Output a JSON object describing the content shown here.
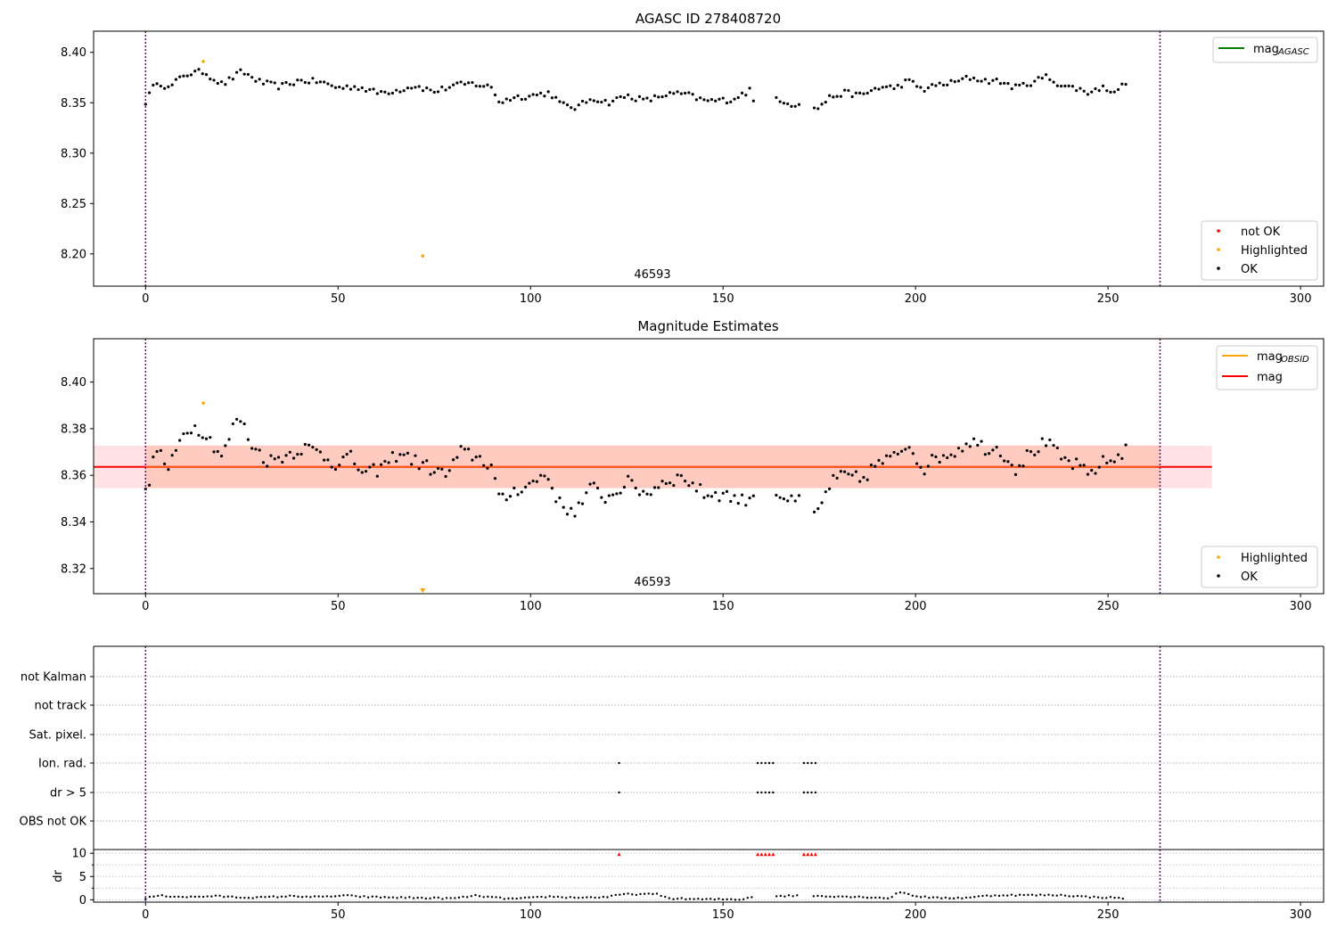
{
  "chart_data": [
    {
      "type": "scatter",
      "title": "AGASC ID 278408720",
      "annotation": "46593",
      "xlim": [
        -13.5,
        306
      ],
      "ylim": [
        8.168,
        8.421
      ],
      "x_ticks": [
        0,
        50,
        100,
        150,
        200,
        250,
        300
      ],
      "y_ticks": [
        8.2,
        8.25,
        8.3,
        8.35,
        8.4
      ],
      "y_tick_labels": [
        "8.20",
        "8.25",
        "8.30",
        "8.35",
        "8.40"
      ],
      "x_tick_labels": [
        "0",
        "50",
        "100",
        "150",
        "200",
        "250",
        "300"
      ],
      "vlines": [
        0,
        263.5
      ],
      "lines": [
        {
          "name": "mag_AGASC_label",
          "label_main": "mag",
          "label_sub": "AGASC",
          "color": "#008000"
        }
      ],
      "legend_top": {
        "position": "top-right",
        "entries": [
          {
            "label_main": "mag",
            "label_sub": "AGASC",
            "color": "#008000"
          }
        ]
      },
      "legend_bottom": {
        "position": "bottom-right",
        "entries": [
          {
            "label": "not OK",
            "color": "#ff0000"
          },
          {
            "label": "Highlighted",
            "color": "#ffa500"
          },
          {
            "label": "OK",
            "color": "#000000"
          }
        ]
      },
      "series": [
        {
          "name": "OK",
          "color": "#000000",
          "anchors": [
            [
              0,
              8.351
            ],
            [
              3,
              8.372
            ],
            [
              6,
              8.364
            ],
            [
              10,
              8.378
            ],
            [
              15,
              8.381
            ],
            [
              20,
              8.368
            ],
            [
              25,
              8.381
            ],
            [
              30,
              8.37
            ],
            [
              35,
              8.366
            ],
            [
              40,
              8.372
            ],
            [
              45,
              8.371
            ],
            [
              50,
              8.365
            ],
            [
              55,
              8.366
            ],
            [
              60,
              8.36
            ],
            [
              65,
              8.362
            ],
            [
              70,
              8.367
            ],
            [
              75,
              8.361
            ],
            [
              80,
              8.367
            ],
            [
              85,
              8.369
            ],
            [
              90,
              8.365
            ],
            [
              92,
              8.35
            ],
            [
              95,
              8.355
            ],
            [
              100,
              8.357
            ],
            [
              105,
              8.36
            ],
            [
              108,
              8.348
            ],
            [
              112,
              8.345
            ],
            [
              116,
              8.355
            ],
            [
              120,
              8.35
            ],
            [
              125,
              8.357
            ],
            [
              130,
              8.352
            ],
            [
              135,
              8.358
            ],
            [
              140,
              8.359
            ],
            [
              145,
              8.352
            ],
            [
              148,
              8.352
            ],
            [
              152,
              8.353
            ],
            [
              157,
              8.362
            ],
            [
              158,
              8.35
            ],
            [
              164,
              8.355
            ],
            [
              168,
              8.348
            ],
            [
              170,
              8.35
            ],
            [
              174,
              8.343
            ],
            [
              178,
              8.356
            ],
            [
              182,
              8.36
            ],
            [
              186,
              8.357
            ],
            [
              190,
              8.365
            ],
            [
              195,
              8.365
            ],
            [
              198,
              8.372
            ],
            [
              202,
              8.363
            ],
            [
              206,
              8.368
            ],
            [
              210,
              8.37
            ],
            [
              214,
              8.375
            ],
            [
              218,
              8.372
            ],
            [
              222,
              8.371
            ],
            [
              226,
              8.365
            ],
            [
              230,
              8.37
            ],
            [
              234,
              8.376
            ],
            [
              238,
              8.367
            ],
            [
              242,
              8.364
            ],
            [
              245,
              8.36
            ],
            [
              248,
              8.365
            ],
            [
              252,
              8.362
            ],
            [
              256,
              8.373
            ],
            [
              260,
              8.368
            ],
            [
              263,
              8.368
            ]
          ],
          "n": 251
        },
        {
          "name": "Highlighted",
          "color": "#ffa500",
          "points": [
            [
              15,
              8.391
            ],
            [
              72,
              8.198
            ]
          ]
        }
      ]
    },
    {
      "type": "scatter",
      "title": "Magnitude Estimates",
      "annotation": "46593",
      "xlim": [
        -13.5,
        306
      ],
      "ylim": [
        8.3092,
        8.4186
      ],
      "x_ticks": [
        0,
        50,
        100,
        150,
        200,
        250,
        300
      ],
      "y_ticks": [
        8.32,
        8.34,
        8.36,
        8.38,
        8.4
      ],
      "y_tick_labels": [
        "8.32",
        "8.34",
        "8.36",
        "8.38",
        "8.40"
      ],
      "x_tick_labels": [
        "0",
        "50",
        "100",
        "150",
        "200",
        "250",
        "300"
      ],
      "vlines": [
        0,
        263.5
      ],
      "mag": 8.3636,
      "band": [
        8.3545,
        8.3728
      ],
      "band_x": [
        -13.5,
        277
      ],
      "legend_top": {
        "position": "top-right",
        "entries": [
          {
            "label_main": "mag",
            "label_sub": "OBSID",
            "color": "#ffa500"
          },
          {
            "label_main": "mag",
            "label_sub": "",
            "color": "#ff0000"
          }
        ]
      },
      "legend_bottom": {
        "position": "bottom-right",
        "entries": [
          {
            "label": "Highlighted",
            "color": "#ffa500"
          },
          {
            "label": "OK",
            "color": "#000000"
          }
        ]
      },
      "series": [
        {
          "name": "OK",
          "color": "#000000",
          "anchors": [
            [
              0,
              8.352
            ],
            [
              3,
              8.372
            ],
            [
              6,
              8.362
            ],
            [
              10,
              8.379
            ],
            [
              12,
              8.381
            ],
            [
              15,
              8.379
            ],
            [
              20,
              8.368
            ],
            [
              24,
              8.386
            ],
            [
              28,
              8.372
            ],
            [
              32,
              8.366
            ],
            [
              37,
              8.369
            ],
            [
              41,
              8.372
            ],
            [
              45,
              8.37
            ],
            [
              49,
              8.365
            ],
            [
              53,
              8.368
            ],
            [
              57,
              8.36
            ],
            [
              61,
              8.363
            ],
            [
              66,
              8.37
            ],
            [
              70,
              8.366
            ],
            [
              74,
              8.363
            ],
            [
              78,
              8.36
            ],
            [
              82,
              8.37
            ],
            [
              86,
              8.368
            ],
            [
              90,
              8.364
            ],
            [
              92,
              8.348
            ],
            [
              96,
              8.354
            ],
            [
              100,
              8.356
            ],
            [
              104,
              8.361
            ],
            [
              108,
              8.346
            ],
            [
              112,
              8.345
            ],
            [
              116,
              8.355
            ],
            [
              120,
              8.35
            ],
            [
              125,
              8.357
            ],
            [
              130,
              8.352
            ],
            [
              135,
              8.358
            ],
            [
              140,
              8.359
            ],
            [
              145,
              8.352
            ],
            [
              150,
              8.352
            ],
            [
              155,
              8.349
            ],
            [
              158,
              8.352
            ],
            [
              164,
              8.353
            ],
            [
              168,
              8.348
            ],
            [
              171,
              8.35
            ],
            [
              174,
              8.342
            ],
            [
              178,
              8.357
            ],
            [
              182,
              8.36
            ],
            [
              186,
              8.358
            ],
            [
              190,
              8.365
            ],
            [
              194,
              8.367
            ],
            [
              198,
              8.374
            ],
            [
              202,
              8.363
            ],
            [
              206,
              8.368
            ],
            [
              210,
              8.37
            ],
            [
              214,
              8.375
            ],
            [
              218,
              8.372
            ],
            [
              222,
              8.371
            ],
            [
              226,
              8.363
            ],
            [
              230,
              8.37
            ],
            [
              234,
              8.374
            ],
            [
              238,
              8.367
            ],
            [
              242,
              8.364
            ],
            [
              245,
              8.36
            ],
            [
              248,
              8.365
            ],
            [
              252,
              8.367
            ],
            [
              256,
              8.374
            ],
            [
              260,
              8.367
            ],
            [
              263,
              8.367
            ]
          ],
          "n": 251
        },
        {
          "name": "Highlighted",
          "color": "#ffa500",
          "points": [
            [
              15,
              8.391
            ]
          ],
          "marker_below": 72
        }
      ]
    },
    {
      "type": "scatter",
      "title": "",
      "xlim": [
        -13.5,
        306
      ],
      "categories": [
        "not Kalman",
        "not track",
        "Sat. pixel.",
        "Ion. rad.",
        "dr > 5",
        "OBS not OK"
      ],
      "flag_points": {
        "Ion. rad.": [
          123,
          159,
          160,
          161,
          162,
          163,
          171,
          172,
          173,
          174
        ],
        "dr > 5": [
          123,
          159,
          160,
          161,
          162,
          163,
          171,
          172,
          173,
          174
        ]
      },
      "vlines": [
        0,
        263.5
      ]
    },
    {
      "type": "scatter",
      "title": "",
      "ylabel": "dr",
      "xlim": [
        -13.5,
        306
      ],
      "ylim": [
        -0.5,
        10.8
      ],
      "y_ticks": [
        0,
        5,
        10
      ],
      "y_tick_labels": [
        "0",
        "5",
        "10"
      ],
      "x_ticks": [
        0,
        50,
        100,
        150,
        200,
        250,
        300
      ],
      "x_tick_labels": [
        "0",
        "50",
        "100",
        "150",
        "200",
        "250",
        "300"
      ],
      "vlines": [
        0,
        263.5
      ],
      "series": [
        {
          "name": "dr",
          "color": "#000000",
          "anchors": [
            [
              0,
              0.3
            ],
            [
              3,
              0.9
            ],
            [
              8,
              0.7
            ],
            [
              12,
              0.6
            ],
            [
              18,
              0.8
            ],
            [
              25,
              0.5
            ],
            [
              30,
              0.5
            ],
            [
              38,
              0.8
            ],
            [
              45,
              0.6
            ],
            [
              52,
              0.9
            ],
            [
              58,
              0.6
            ],
            [
              65,
              0.5
            ],
            [
              72,
              0.4
            ],
            [
              80,
              0.3
            ],
            [
              86,
              0.9
            ],
            [
              90,
              0.5
            ],
            [
              95,
              0.2
            ],
            [
              100,
              0.4
            ],
            [
              105,
              0.7
            ],
            [
              110,
              0.5
            ],
            [
              115,
              0.5
            ],
            [
              120,
              0.6
            ],
            [
              124,
              1.2
            ],
            [
              133,
              1.2
            ],
            [
              136,
              0.3
            ],
            [
              145,
              0.1
            ],
            [
              155,
              0.1
            ],
            [
              158,
              0.8
            ],
            [
              164,
              0.8
            ],
            [
              170,
              0.9
            ],
            [
              176,
              0.8
            ],
            [
              182,
              0.7
            ],
            [
              190,
              0.5
            ],
            [
              193,
              0.3
            ],
            [
              196,
              1.7
            ],
            [
              200,
              0.8
            ],
            [
              205,
              0.4
            ],
            [
              212,
              0.4
            ],
            [
              218,
              0.8
            ],
            [
              222,
              1.0
            ],
            [
              230,
              1.0
            ],
            [
              238,
              1.0
            ],
            [
              245,
              0.6
            ],
            [
              250,
              0.5
            ],
            [
              255,
              0.3
            ],
            [
              260,
              0.2
            ],
            [
              263,
              0.9
            ]
          ],
          "n": 230
        },
        {
          "name": "dr > 5",
          "color": "#ff0000",
          "points": [
            [
              123,
              9.8
            ],
            [
              159,
              9.8
            ],
            [
              160,
              9.8
            ],
            [
              161,
              9.8
            ],
            [
              162,
              9.8
            ],
            [
              163,
              9.8
            ],
            [
              171,
              9.8
            ],
            [
              172,
              9.8
            ],
            [
              173,
              9.8
            ],
            [
              174,
              9.8
            ]
          ]
        }
      ]
    }
  ]
}
